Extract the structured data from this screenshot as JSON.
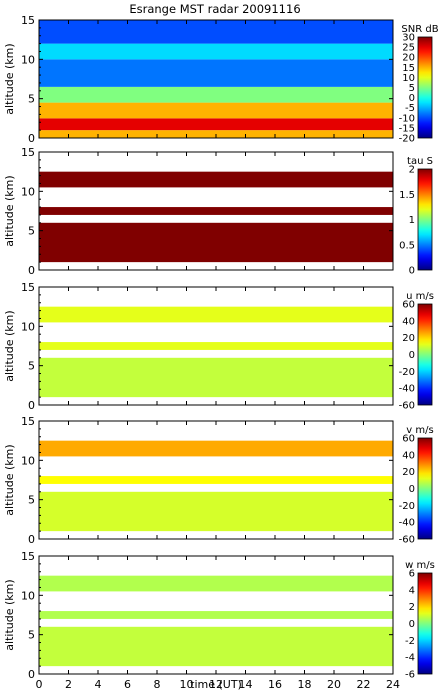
{
  "title": "Esrange MST radar 20091116",
  "chart_data": {
    "type": "heatmap",
    "title": "Esrange MST radar 20091116",
    "xlabel": "time (UT)",
    "x_ticks": [
      "0",
      "2",
      "4",
      "6",
      "8",
      "10",
      "12",
      "14",
      "16",
      "18",
      "20",
      "22",
      "24"
    ],
    "xlim": [
      0,
      24
    ],
    "shared_x": true,
    "grid": false,
    "colormap": "jet",
    "panels": [
      {
        "name": "snr",
        "ylabel": "altitude (km)",
        "ylim": [
          0,
          15
        ],
        "y_ticks": [
          "0",
          "5",
          "10",
          "15"
        ],
        "colorbar_label": "SNR dB",
        "colorbar_range": [
          -20,
          30
        ],
        "colorbar_ticks": [
          "30",
          "25",
          "20",
          "15",
          "10",
          "5",
          "0",
          "-5",
          "-10",
          "-15",
          "-20"
        ],
        "layers": [
          {
            "alt_range": [
              0,
              1
            ],
            "value": 15
          },
          {
            "alt_range": [
              1,
              2.5
            ],
            "value": 25
          },
          {
            "alt_range": [
              2.5,
              4.5
            ],
            "value": 15
          },
          {
            "alt_range": [
              4.5,
              6.5
            ],
            "value": 5
          },
          {
            "alt_range": [
              6.5,
              10
            ],
            "value": -8
          },
          {
            "alt_range": [
              10,
              12
            ],
            "value": -3
          },
          {
            "alt_range": [
              12,
              15
            ],
            "value": -10
          }
        ]
      },
      {
        "name": "tau",
        "ylabel": "altitude (km)",
        "ylim": [
          0,
          15
        ],
        "y_ticks": [
          "0",
          "5",
          "10",
          "15"
        ],
        "colorbar_label": "tau S",
        "colorbar_range": [
          0,
          2
        ],
        "colorbar_ticks": [
          "2",
          "1.5",
          "1",
          "0.5",
          "0"
        ],
        "layers": [
          {
            "alt_range": [
              1,
              6
            ],
            "value": 2
          },
          {
            "alt_range": [
              7,
              8
            ],
            "value": 2
          },
          {
            "alt_range": [
              10.5,
              12.5
            ],
            "value": 2
          }
        ]
      },
      {
        "name": "u",
        "ylabel": "altitude (km)",
        "ylim": [
          0,
          15
        ],
        "y_ticks": [
          "0",
          "5",
          "10",
          "15"
        ],
        "colorbar_label": "u m/s",
        "colorbar_range": [
          -60,
          60
        ],
        "colorbar_ticks": [
          "60",
          "40",
          "20",
          "0",
          "-20",
          "-40",
          "-60"
        ],
        "layers": [
          {
            "alt_range": [
              1,
              6
            ],
            "value": 8
          },
          {
            "alt_range": [
              7,
              8
            ],
            "value": 12
          },
          {
            "alt_range": [
              10.5,
              12.5
            ],
            "value": 12
          }
        ]
      },
      {
        "name": "v",
        "ylabel": "altitude (km)",
        "ylim": [
          0,
          15
        ],
        "y_ticks": [
          "0",
          "5",
          "10",
          "15"
        ],
        "colorbar_label": "v m/s",
        "colorbar_range": [
          -60,
          60
        ],
        "colorbar_ticks": [
          "60",
          "40",
          "20",
          "0",
          "-20",
          "-40",
          "-60"
        ],
        "layers": [
          {
            "alt_range": [
              1,
              6
            ],
            "value": 10
          },
          {
            "alt_range": [
              7,
              8
            ],
            "value": 15
          },
          {
            "alt_range": [
              10.5,
              12.5
            ],
            "value": 25
          }
        ]
      },
      {
        "name": "w",
        "ylabel": "altitude (km)",
        "ylim": [
          0,
          15
        ],
        "y_ticks": [
          "0",
          "5",
          "10",
          "15"
        ],
        "colorbar_label": "w m/s",
        "colorbar_range": [
          -6,
          6
        ],
        "colorbar_ticks": [
          "6",
          "4",
          "2",
          "0",
          "-2",
          "-4",
          "-6"
        ],
        "layers": [
          {
            "alt_range": [
              1,
              6
            ],
            "value": 0.8
          },
          {
            "alt_range": [
              7,
              8
            ],
            "value": 0.6
          },
          {
            "alt_range": [
              10.5,
              12.5
            ],
            "value": 0.6
          }
        ]
      }
    ]
  }
}
